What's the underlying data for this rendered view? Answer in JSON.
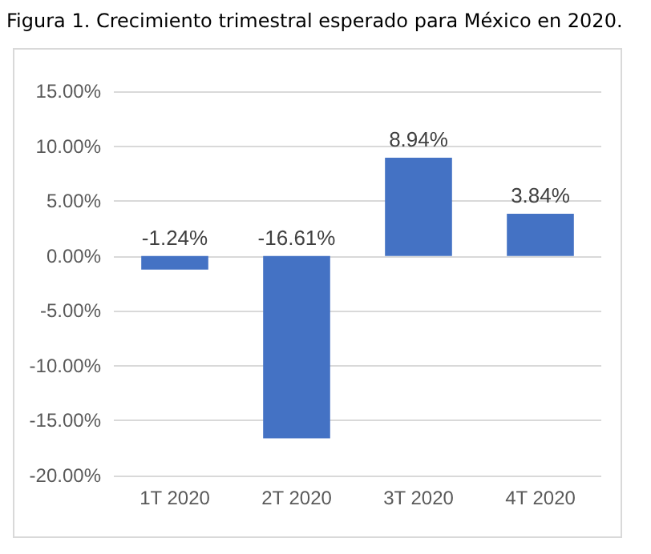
{
  "chart_data": {
    "type": "bar",
    "title": "Figura 1. Crecimiento trimestral esperado para México en 2020.",
    "categories": [
      "1T 2020",
      "2T 2020",
      "3T 2020",
      "4T 2020"
    ],
    "values": [
      -1.24,
      -16.61,
      8.94,
      3.84
    ],
    "value_labels": [
      "-1.24%",
      "-16.61%",
      "8.94%",
      "3.84%"
    ],
    "color": "#4472c4",
    "ylim": [
      -20,
      15
    ],
    "yticks": [
      {
        "value": -20,
        "label": "-20.00%"
      },
      {
        "value": -15,
        "label": "-15.00%"
      },
      {
        "value": -10,
        "label": "-10.00%"
      },
      {
        "value": -5,
        "label": "-5.00%"
      },
      {
        "value": 0,
        "label": "0.00%"
      },
      {
        "value": 5,
        "label": "5.00%"
      },
      {
        "value": 10,
        "label": "10.00%"
      },
      {
        "value": 15,
        "label": "15.00%"
      }
    ],
    "grid": "y"
  }
}
